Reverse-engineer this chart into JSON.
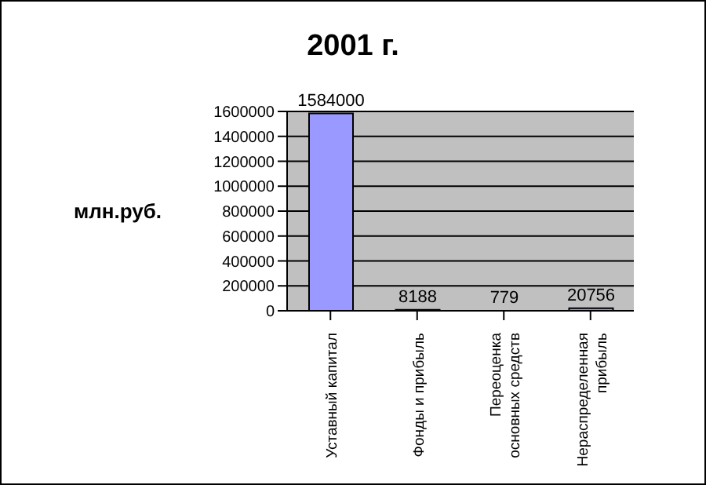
{
  "chart_data": {
    "type": "bar",
    "title": "2001 г.",
    "ylabel": "млн.руб.",
    "categories": [
      "Уставный капитал",
      "Фонды и прибыль",
      "Переоценка основных средств",
      "Нераспределенная прибыль"
    ],
    "values": [
      1584000,
      8188,
      779,
      20756
    ],
    "color": "#9999ff",
    "ylim": [
      0,
      1600000
    ],
    "yticks": [
      0,
      200000,
      400000,
      600000,
      800000,
      1000000,
      1200000,
      1400000,
      1600000
    ],
    "grid": "y",
    "data_labels": true,
    "legend": false
  }
}
